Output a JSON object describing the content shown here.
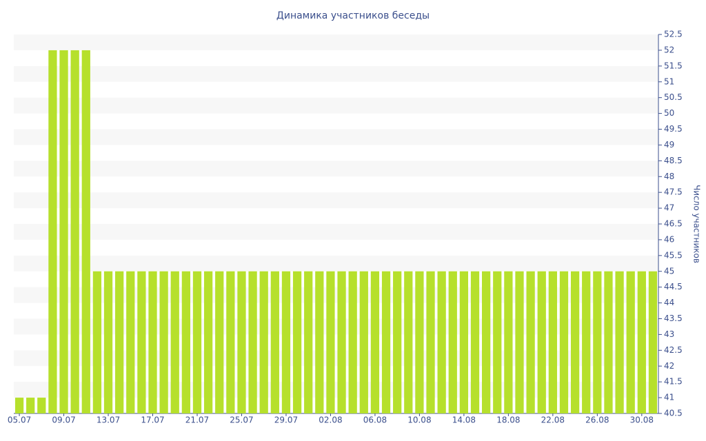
{
  "chart_data": {
    "type": "bar",
    "title": "Динамика участников беседы",
    "y_axis_label": "Число участников",
    "categories": [
      "05.07",
      null,
      null,
      null,
      "09.07",
      null,
      null,
      null,
      "13.07",
      null,
      null,
      null,
      "17.07",
      null,
      null,
      null,
      "21.07",
      null,
      null,
      null,
      "25.07",
      null,
      null,
      null,
      "29.07",
      null,
      null,
      null,
      "02.08",
      null,
      null,
      null,
      "06.08",
      null,
      null,
      null,
      "10.08",
      null,
      null,
      null,
      "14.08",
      null,
      null,
      null,
      "18.08",
      null,
      null,
      null,
      "22.08",
      null,
      null,
      null,
      "26.08",
      null,
      null,
      null,
      "30.08",
      null
    ],
    "values": [
      41,
      41,
      41,
      52,
      52,
      52,
      52,
      45,
      45,
      45,
      45,
      45,
      45,
      45,
      45,
      45,
      45,
      45,
      45,
      45,
      45,
      45,
      45,
      45,
      45,
      45,
      45,
      45,
      45,
      45,
      45,
      45,
      45,
      45,
      45,
      45,
      45,
      45,
      45,
      45,
      45,
      45,
      45,
      45,
      45,
      45,
      45,
      45,
      45,
      45,
      45,
      45,
      45,
      45,
      45,
      45,
      45,
      45
    ],
    "color": "#b6e02c",
    "ylim": [
      40.5,
      52.5
    ],
    "yticks": [
      40.5,
      41,
      41.5,
      42,
      42.5,
      43,
      43.5,
      44,
      44.5,
      45,
      45.5,
      46,
      46.5,
      47,
      47.5,
      48,
      48.5,
      49,
      49.5,
      50,
      50.5,
      51,
      51.5,
      52,
      52.5
    ],
    "y_axis_side": "right",
    "grid": "bands"
  }
}
